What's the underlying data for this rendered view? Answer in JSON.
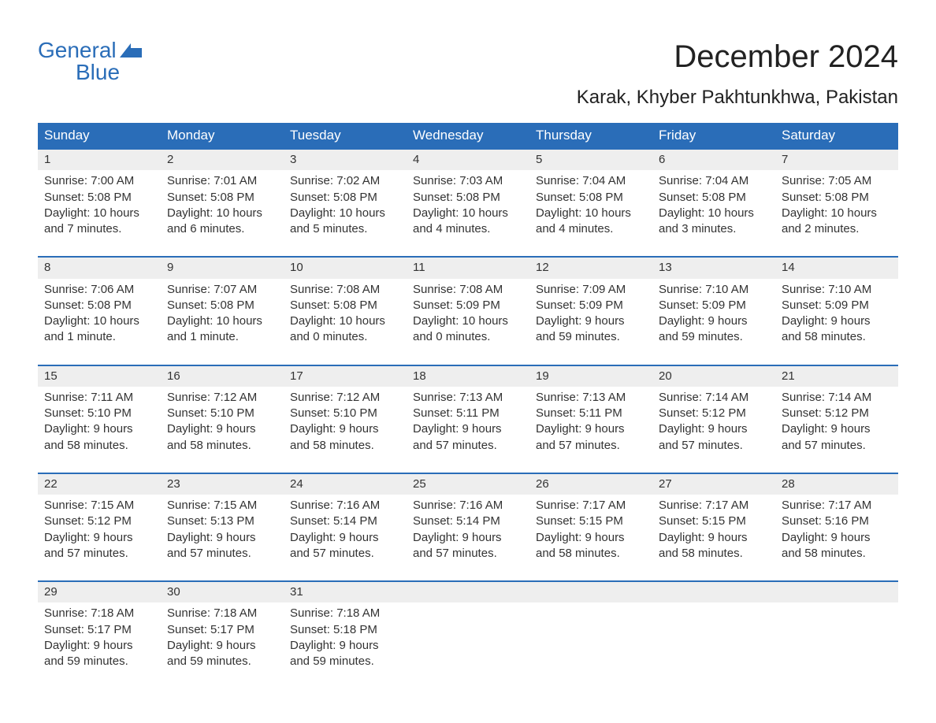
{
  "logo": {
    "word1": "General",
    "word2": "Blue",
    "accent_color": "#2a6db8"
  },
  "title": "December 2024",
  "location": "Karak, Khyber Pakhtunkhwa, Pakistan",
  "colors": {
    "header_bg": "#2a6db8",
    "header_text": "#ffffff",
    "daynum_bg": "#eeeeee",
    "row_top_border": "#2a6db8",
    "body_text": "#333333",
    "title_text": "#222222",
    "background": "#ffffff"
  },
  "fonts": {
    "title_size_pt": 30,
    "location_size_pt": 18,
    "header_size_pt": 13,
    "body_size_pt": 11
  },
  "day_headers": [
    "Sunday",
    "Monday",
    "Tuesday",
    "Wednesday",
    "Thursday",
    "Friday",
    "Saturday"
  ],
  "labels": {
    "sunrise": "Sunrise:",
    "sunset": "Sunset:",
    "daylight": "Daylight:"
  },
  "weeks": [
    [
      {
        "n": "1",
        "sr": "7:00 AM",
        "ss": "5:08 PM",
        "dl": "10 hours and 7 minutes."
      },
      {
        "n": "2",
        "sr": "7:01 AM",
        "ss": "5:08 PM",
        "dl": "10 hours and 6 minutes."
      },
      {
        "n": "3",
        "sr": "7:02 AM",
        "ss": "5:08 PM",
        "dl": "10 hours and 5 minutes."
      },
      {
        "n": "4",
        "sr": "7:03 AM",
        "ss": "5:08 PM",
        "dl": "10 hours and 4 minutes."
      },
      {
        "n": "5",
        "sr": "7:04 AM",
        "ss": "5:08 PM",
        "dl": "10 hours and 4 minutes."
      },
      {
        "n": "6",
        "sr": "7:04 AM",
        "ss": "5:08 PM",
        "dl": "10 hours and 3 minutes."
      },
      {
        "n": "7",
        "sr": "7:05 AM",
        "ss": "5:08 PM",
        "dl": "10 hours and 2 minutes."
      }
    ],
    [
      {
        "n": "8",
        "sr": "7:06 AM",
        "ss": "5:08 PM",
        "dl": "10 hours and 1 minute."
      },
      {
        "n": "9",
        "sr": "7:07 AM",
        "ss": "5:08 PM",
        "dl": "10 hours and 1 minute."
      },
      {
        "n": "10",
        "sr": "7:08 AM",
        "ss": "5:08 PM",
        "dl": "10 hours and 0 minutes."
      },
      {
        "n": "11",
        "sr": "7:08 AM",
        "ss": "5:09 PM",
        "dl": "10 hours and 0 minutes."
      },
      {
        "n": "12",
        "sr": "7:09 AM",
        "ss": "5:09 PM",
        "dl": "9 hours and 59 minutes."
      },
      {
        "n": "13",
        "sr": "7:10 AM",
        "ss": "5:09 PM",
        "dl": "9 hours and 59 minutes."
      },
      {
        "n": "14",
        "sr": "7:10 AM",
        "ss": "5:09 PM",
        "dl": "9 hours and 58 minutes."
      }
    ],
    [
      {
        "n": "15",
        "sr": "7:11 AM",
        "ss": "5:10 PM",
        "dl": "9 hours and 58 minutes."
      },
      {
        "n": "16",
        "sr": "7:12 AM",
        "ss": "5:10 PM",
        "dl": "9 hours and 58 minutes."
      },
      {
        "n": "17",
        "sr": "7:12 AM",
        "ss": "5:10 PM",
        "dl": "9 hours and 58 minutes."
      },
      {
        "n": "18",
        "sr": "7:13 AM",
        "ss": "5:11 PM",
        "dl": "9 hours and 57 minutes."
      },
      {
        "n": "19",
        "sr": "7:13 AM",
        "ss": "5:11 PM",
        "dl": "9 hours and 57 minutes."
      },
      {
        "n": "20",
        "sr": "7:14 AM",
        "ss": "5:12 PM",
        "dl": "9 hours and 57 minutes."
      },
      {
        "n": "21",
        "sr": "7:14 AM",
        "ss": "5:12 PM",
        "dl": "9 hours and 57 minutes."
      }
    ],
    [
      {
        "n": "22",
        "sr": "7:15 AM",
        "ss": "5:12 PM",
        "dl": "9 hours and 57 minutes."
      },
      {
        "n": "23",
        "sr": "7:15 AM",
        "ss": "5:13 PM",
        "dl": "9 hours and 57 minutes."
      },
      {
        "n": "24",
        "sr": "7:16 AM",
        "ss": "5:14 PM",
        "dl": "9 hours and 57 minutes."
      },
      {
        "n": "25",
        "sr": "7:16 AM",
        "ss": "5:14 PM",
        "dl": "9 hours and 57 minutes."
      },
      {
        "n": "26",
        "sr": "7:17 AM",
        "ss": "5:15 PM",
        "dl": "9 hours and 58 minutes."
      },
      {
        "n": "27",
        "sr": "7:17 AM",
        "ss": "5:15 PM",
        "dl": "9 hours and 58 minutes."
      },
      {
        "n": "28",
        "sr": "7:17 AM",
        "ss": "5:16 PM",
        "dl": "9 hours and 58 minutes."
      }
    ],
    [
      {
        "n": "29",
        "sr": "7:18 AM",
        "ss": "5:17 PM",
        "dl": "9 hours and 59 minutes."
      },
      {
        "n": "30",
        "sr": "7:18 AM",
        "ss": "5:17 PM",
        "dl": "9 hours and 59 minutes."
      },
      {
        "n": "31",
        "sr": "7:18 AM",
        "ss": "5:18 PM",
        "dl": "9 hours and 59 minutes."
      },
      null,
      null,
      null,
      null
    ]
  ]
}
